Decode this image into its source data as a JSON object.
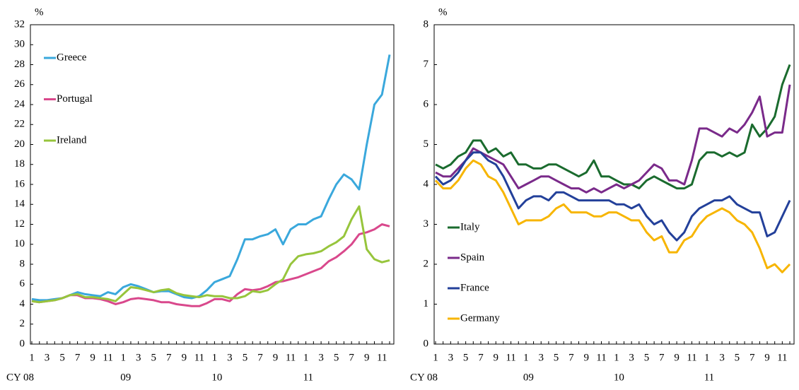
{
  "chart_data": [
    {
      "type": "line",
      "unit_label": "%",
      "categories": [
        "1",
        null,
        "3",
        null,
        "5",
        null,
        "7",
        null,
        "9",
        null,
        "11",
        null,
        "1",
        null,
        "3",
        null,
        "5",
        null,
        "7",
        null,
        "9",
        null,
        "11",
        null,
        "1",
        null,
        "3",
        null,
        "5",
        null,
        "7",
        null,
        "9",
        null,
        "11",
        null,
        "1",
        null,
        "3",
        null,
        "5",
        null,
        "7",
        null,
        "9",
        null,
        "11",
        null
      ],
      "year_labels": [
        "CY 08",
        "09",
        "10",
        "11"
      ],
      "ylim": [
        0,
        32
      ],
      "yticks": [
        0,
        2,
        4,
        6,
        8,
        10,
        12,
        14,
        16,
        18,
        20,
        22,
        24,
        26,
        28,
        30,
        32
      ],
      "legend_position": "upper left",
      "series": [
        {
          "name": "Greece",
          "color": "#3aa8dc",
          "values": [
            4.5,
            4.4,
            4.4,
            4.5,
            4.6,
            4.9,
            5.2,
            5.0,
            4.9,
            4.8,
            5.2,
            5.0,
            5.7,
            6.0,
            5.8,
            5.5,
            5.2,
            5.3,
            5.3,
            5.0,
            4.7,
            4.6,
            4.8,
            5.4,
            6.2,
            6.5,
            6.8,
            8.5,
            10.5,
            10.5,
            10.8,
            11.0,
            11.5,
            10.0,
            11.5,
            12.0,
            12.0,
            12.5,
            12.8,
            14.5,
            16.0,
            17.0,
            16.5,
            15.5,
            20.0,
            24.0,
            25.0,
            29.0
          ]
        },
        {
          "name": "Portugal",
          "color": "#d9488c",
          "values": [
            4.3,
            4.2,
            4.3,
            4.4,
            4.6,
            4.9,
            4.9,
            4.6,
            4.6,
            4.5,
            4.3,
            4.0,
            4.2,
            4.5,
            4.6,
            4.5,
            4.4,
            4.2,
            4.2,
            4.0,
            3.9,
            3.8,
            3.8,
            4.1,
            4.5,
            4.5,
            4.3,
            5.0,
            5.5,
            5.4,
            5.5,
            5.8,
            6.2,
            6.3,
            6.5,
            6.7,
            7.0,
            7.3,
            7.6,
            8.3,
            8.7,
            9.3,
            10.0,
            11.0,
            11.2,
            11.5,
            12.0,
            11.8
          ]
        },
        {
          "name": "Ireland",
          "color": "#97c53c",
          "values": [
            4.3,
            4.2,
            4.3,
            4.4,
            4.6,
            4.9,
            5.0,
            4.7,
            4.7,
            4.6,
            4.5,
            4.3,
            5.0,
            5.7,
            5.6,
            5.4,
            5.2,
            5.4,
            5.5,
            5.1,
            4.9,
            4.8,
            4.7,
            4.9,
            4.8,
            4.8,
            4.6,
            4.6,
            4.8,
            5.3,
            5.2,
            5.4,
            6.0,
            6.5,
            8.0,
            8.8,
            9.0,
            9.1,
            9.3,
            9.8,
            10.2,
            10.8,
            12.5,
            13.8,
            9.5,
            8.5,
            8.2,
            8.4
          ]
        }
      ]
    },
    {
      "type": "line",
      "unit_label": "%",
      "categories": [
        "1",
        null,
        "3",
        null,
        "5",
        null,
        "7",
        null,
        "9",
        null,
        "11",
        null,
        "1",
        null,
        "3",
        null,
        "5",
        null,
        "7",
        null,
        "9",
        null,
        "11",
        null,
        "1",
        null,
        "3",
        null,
        "5",
        null,
        "7",
        null,
        "9",
        null,
        "11",
        null,
        "1",
        null,
        "3",
        null,
        "5",
        null,
        "7",
        null,
        "9",
        null,
        "11",
        null
      ],
      "year_labels": [
        "CY 08",
        "09",
        "10",
        "11"
      ],
      "ylim": [
        0,
        8
      ],
      "yticks": [
        0,
        1,
        2,
        3,
        4,
        5,
        6,
        7,
        8
      ],
      "legend_position": "lower left",
      "series": [
        {
          "name": "Italy",
          "color": "#1a6b2e",
          "values": [
            4.5,
            4.4,
            4.5,
            4.7,
            4.8,
            5.1,
            5.1,
            4.8,
            4.9,
            4.7,
            4.8,
            4.5,
            4.5,
            4.4,
            4.4,
            4.5,
            4.5,
            4.4,
            4.3,
            4.2,
            4.3,
            4.6,
            4.2,
            4.2,
            4.1,
            4.0,
            4.0,
            3.9,
            4.1,
            4.2,
            4.1,
            4.0,
            3.9,
            3.9,
            4.0,
            4.6,
            4.8,
            4.8,
            4.7,
            4.8,
            4.7,
            4.8,
            5.5,
            5.2,
            5.4,
            5.7,
            6.5,
            7.0
          ]
        },
        {
          "name": "Spain",
          "color": "#7a2a8a",
          "values": [
            4.3,
            4.2,
            4.2,
            4.4,
            4.6,
            4.9,
            4.8,
            4.7,
            4.6,
            4.5,
            4.2,
            3.9,
            4.0,
            4.1,
            4.2,
            4.2,
            4.1,
            4.0,
            3.9,
            3.9,
            3.8,
            3.9,
            3.8,
            3.9,
            4.0,
            3.9,
            4.0,
            4.1,
            4.3,
            4.5,
            4.4,
            4.1,
            4.1,
            4.0,
            4.6,
            5.4,
            5.4,
            5.3,
            5.2,
            5.4,
            5.3,
            5.5,
            5.8,
            6.2,
            5.2,
            5.3,
            5.3,
            6.5
          ]
        },
        {
          "name": "France",
          "color": "#23409a",
          "values": [
            4.2,
            4.0,
            4.1,
            4.3,
            4.6,
            4.8,
            4.8,
            4.6,
            4.5,
            4.2,
            3.8,
            3.4,
            3.6,
            3.7,
            3.7,
            3.6,
            3.8,
            3.8,
            3.7,
            3.6,
            3.6,
            3.6,
            3.6,
            3.6,
            3.5,
            3.5,
            3.4,
            3.5,
            3.2,
            3.0,
            3.1,
            2.8,
            2.6,
            2.8,
            3.2,
            3.4,
            3.5,
            3.6,
            3.6,
            3.7,
            3.5,
            3.4,
            3.3,
            3.3,
            2.7,
            2.8,
            3.2,
            3.6
          ]
        },
        {
          "name": "Germany",
          "color": "#f7b500",
          "values": [
            4.1,
            3.9,
            3.9,
            4.1,
            4.4,
            4.6,
            4.5,
            4.2,
            4.1,
            3.8,
            3.4,
            3.0,
            3.1,
            3.1,
            3.1,
            3.2,
            3.4,
            3.5,
            3.3,
            3.3,
            3.3,
            3.2,
            3.2,
            3.3,
            3.3,
            3.2,
            3.1,
            3.1,
            2.8,
            2.6,
            2.7,
            2.3,
            2.3,
            2.6,
            2.7,
            3.0,
            3.2,
            3.3,
            3.4,
            3.3,
            3.1,
            3.0,
            2.8,
            2.4,
            1.9,
            2.0,
            1.8,
            2.0
          ]
        }
      ]
    }
  ]
}
